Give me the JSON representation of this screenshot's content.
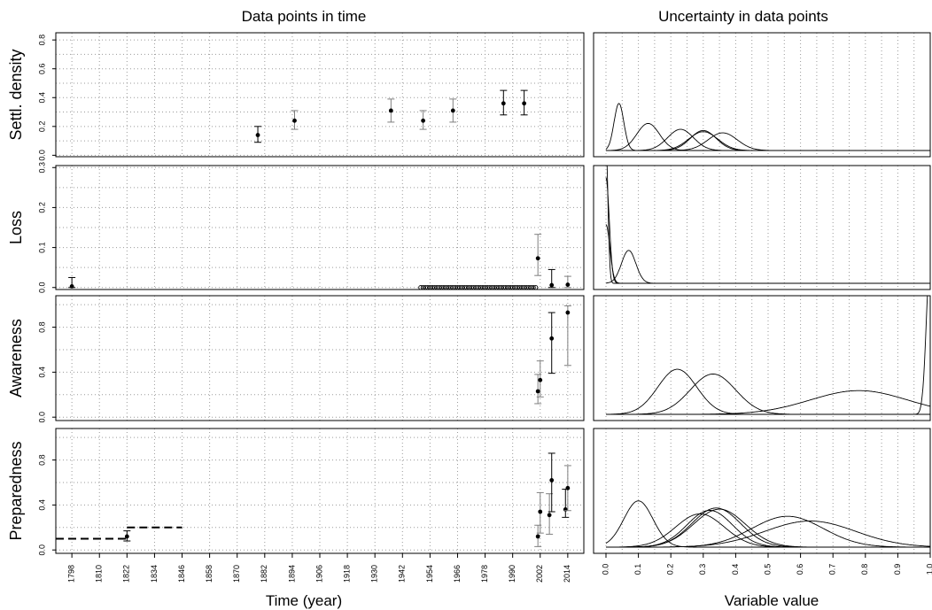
{
  "titles": {
    "left": "Data points in time",
    "right": "Uncertainty in data points",
    "xlabel_left": "Time (year)",
    "xlabel_right": "Variable value"
  },
  "chart_data": {
    "type": "scatter",
    "time_axis": {
      "ticks": [
        1798,
        1810,
        1822,
        1834,
        1846,
        1858,
        1870,
        1882,
        1894,
        1906,
        1918,
        1930,
        1942,
        1954,
        1966,
        1978,
        1990,
        2002,
        2014
      ],
      "range": [
        1791,
        2021
      ]
    },
    "value_axis": {
      "ticks": [
        "0.0",
        "0.1",
        "0.2",
        "0.3",
        "0.4",
        "0.5",
        "0.6",
        "0.7",
        "0.8",
        "0.9",
        "1.0"
      ],
      "range": [
        0,
        1
      ]
    },
    "panels": [
      {
        "name": "Settl. density",
        "ylim": [
          -0.01,
          0.85
        ],
        "yticks": [
          "0.0",
          "0.2",
          "0.4",
          "0.6",
          "0.8"
        ],
        "points": [
          {
            "x": 1879,
            "y": 0.14,
            "lo": 0.09,
            "hi": 0.2,
            "err": "black"
          },
          {
            "x": 1895,
            "y": 0.24,
            "lo": 0.18,
            "hi": 0.31,
            "err": "gray"
          },
          {
            "x": 1937,
            "y": 0.31,
            "lo": 0.23,
            "hi": 0.39,
            "err": "gray"
          },
          {
            "x": 1951,
            "y": 0.24,
            "lo": 0.18,
            "hi": 0.31,
            "err": "gray"
          },
          {
            "x": 1964,
            "y": 0.31,
            "lo": 0.23,
            "hi": 0.39,
            "err": "gray"
          },
          {
            "x": 1986,
            "y": 0.36,
            "lo": 0.28,
            "hi": 0.45,
            "err": "black"
          },
          {
            "x": 1995,
            "y": 0.36,
            "lo": 0.28,
            "hi": 0.45,
            "err": "black"
          }
        ],
        "step_line": [],
        "densities": [
          {
            "mode": 0.04,
            "sd": 0.015,
            "peak": 0.4
          },
          {
            "mode": 0.13,
            "sd": 0.035,
            "peak": 0.23
          },
          {
            "mode": 0.23,
            "sd": 0.04,
            "peak": 0.18
          },
          {
            "mode": 0.3,
            "sd": 0.04,
            "peak": 0.17
          },
          {
            "mode": 0.3,
            "sd": 0.045,
            "peak": 0.16
          },
          {
            "mode": 0.36,
            "sd": 0.045,
            "peak": 0.15
          }
        ]
      },
      {
        "name": "Loss",
        "ylim": [
          -0.005,
          0.305
        ],
        "yticks": [
          "0.0",
          "0.1",
          "0.2",
          "0.3"
        ],
        "points": [
          {
            "x": 1798,
            "y": 0.003,
            "lo": 0.0,
            "hi": 0.025,
            "err": "black"
          },
          {
            "x": 2001,
            "y": 0.073,
            "lo": 0.03,
            "hi": 0.133,
            "err": "gray"
          },
          {
            "x": 2007,
            "y": 0.006,
            "lo": 0.0,
            "hi": 0.045,
            "err": "black"
          },
          {
            "x": 2014,
            "y": 0.007,
            "lo": 0.0,
            "hi": 0.028,
            "err": "gray"
          }
        ],
        "zero_series": {
          "x_start": 1950,
          "x_end": 2000,
          "y": 0
        },
        "step_line": [],
        "densities": [
          {
            "mode": 0.0,
            "sd": 0.006,
            "peak": 1.2
          },
          {
            "mode": 0.0,
            "sd": 0.01,
            "peak": 0.9
          },
          {
            "mode": 0.0,
            "sd": 0.012,
            "peak": 0.5
          },
          {
            "mode": 0.07,
            "sd": 0.022,
            "peak": 0.28
          }
        ]
      },
      {
        "name": "Awareness",
        "ylim": [
          -0.03,
          1.08
        ],
        "yticks": [
          "0.0",
          "0.4",
          "0.8"
        ],
        "points": [
          {
            "x": 2001,
            "y": 0.23,
            "lo": 0.12,
            "hi": 0.38,
            "err": "gray"
          },
          {
            "x": 2002,
            "y": 0.33,
            "lo": 0.18,
            "hi": 0.5,
            "err": "gray"
          },
          {
            "x": 2007,
            "y": 0.7,
            "lo": 0.39,
            "hi": 0.93,
            "err": "black"
          },
          {
            "x": 2014,
            "y": 0.93,
            "lo": 0.46,
            "hi": 0.99,
            "err": "gray"
          }
        ],
        "step_line": [],
        "densities": [
          {
            "mode": 0.22,
            "sd": 0.06,
            "peak": 0.38
          },
          {
            "mode": 0.33,
            "sd": 0.07,
            "peak": 0.34
          },
          {
            "mode": 0.78,
            "sd": 0.15,
            "peak": 0.2
          },
          {
            "mode": 1.0,
            "sd": 0.012,
            "peak": 1.3
          }
        ]
      },
      {
        "name": "Preparedness",
        "ylim": [
          -0.03,
          1.08
        ],
        "yticks": [
          "0.0",
          "0.4",
          "0.8"
        ],
        "points": [
          {
            "x": 1822,
            "y": 0.12,
            "lo": 0.08,
            "hi": 0.17,
            "err": "black"
          },
          {
            "x": 2001,
            "y": 0.12,
            "lo": 0.03,
            "hi": 0.22,
            "err": "gray"
          },
          {
            "x": 2002,
            "y": 0.34,
            "lo": 0.15,
            "hi": 0.51,
            "err": "gray"
          },
          {
            "x": 2006,
            "y": 0.31,
            "lo": 0.14,
            "hi": 0.5,
            "err": "gray"
          },
          {
            "x": 2007,
            "y": 0.62,
            "lo": 0.34,
            "hi": 0.86,
            "err": "black"
          },
          {
            "x": 2013,
            "y": 0.36,
            "lo": 0.29,
            "hi": 0.54,
            "err": "black"
          },
          {
            "x": 2014,
            "y": 0.55,
            "lo": 0.35,
            "hi": 0.75,
            "err": "gray"
          }
        ],
        "step_line": [
          {
            "x1": 1791,
            "x2": 1822,
            "y": 0.1
          },
          {
            "x1": 1822,
            "x2": 1846,
            "y": 0.2
          }
        ],
        "densities": [
          {
            "mode": 0.1,
            "sd": 0.045,
            "peak": 0.39
          },
          {
            "mode": 0.29,
            "sd": 0.075,
            "peak": 0.28
          },
          {
            "mode": 0.32,
            "sd": 0.07,
            "peak": 0.31
          },
          {
            "mode": 0.34,
            "sd": 0.075,
            "peak": 0.33
          },
          {
            "mode": 0.35,
            "sd": 0.08,
            "peak": 0.32
          },
          {
            "mode": 0.56,
            "sd": 0.11,
            "peak": 0.26
          },
          {
            "mode": 0.63,
            "sd": 0.14,
            "peak": 0.22
          }
        ]
      }
    ]
  }
}
